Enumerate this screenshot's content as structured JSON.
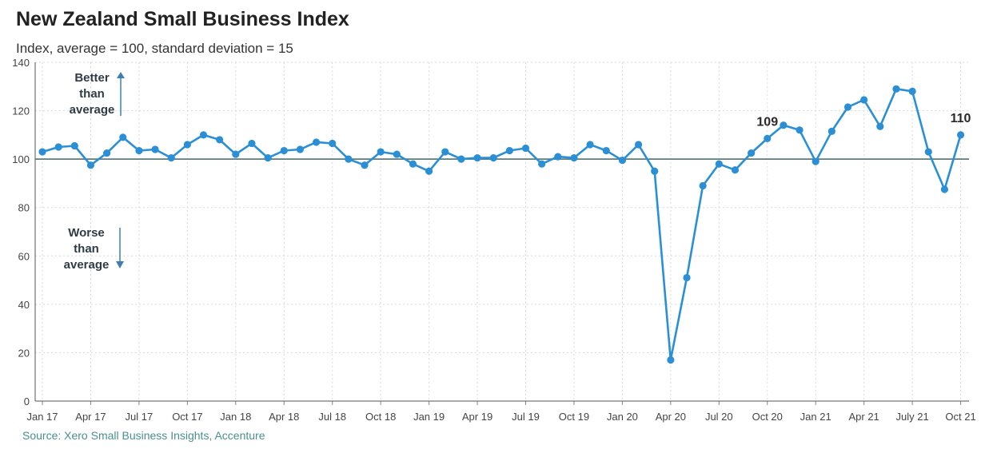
{
  "chart_data": {
    "type": "line",
    "title": "New Zealand Small Business Index",
    "subtitle": "Index, average = 100, standard deviation = 15",
    "source": "Source: Xero Small Business Insights, Accenture",
    "series_color": "#2b8fd6",
    "reference_line": {
      "y": 100,
      "color": "#5f7a7a"
    },
    "ylim": [
      0,
      140
    ],
    "yticks": [
      0,
      20,
      40,
      60,
      80,
      100,
      120,
      140
    ],
    "grid": true,
    "x_tick_labels": [
      {
        "index": 0,
        "label": "Jan 17"
      },
      {
        "index": 3,
        "label": "Apr 17"
      },
      {
        "index": 6,
        "label": "Jul 17"
      },
      {
        "index": 9,
        "label": "Oct 17"
      },
      {
        "index": 12,
        "label": "Jan 18"
      },
      {
        "index": 15,
        "label": "Apr 18"
      },
      {
        "index": 18,
        "label": "Jul 18"
      },
      {
        "index": 21,
        "label": "Oct 18"
      },
      {
        "index": 24,
        "label": "Jan 19"
      },
      {
        "index": 27,
        "label": "Apr 19"
      },
      {
        "index": 30,
        "label": "Jul 19"
      },
      {
        "index": 33,
        "label": "Oct 19"
      },
      {
        "index": 36,
        "label": "Jan 20"
      },
      {
        "index": 39,
        "label": "Apr 20"
      },
      {
        "index": 42,
        "label": "Jul 20"
      },
      {
        "index": 45,
        "label": "Oct 20"
      },
      {
        "index": 48,
        "label": "Jan 21"
      },
      {
        "index": 51,
        "label": "Apr 21"
      },
      {
        "index": 54,
        "label": "July 21"
      },
      {
        "index": 57,
        "label": "Oct 21"
      }
    ],
    "values": [
      103,
      105,
      105.5,
      97.5,
      102.5,
      109,
      103.5,
      104,
      100.5,
      106,
      110,
      108,
      102,
      106.5,
      100.5,
      103.5,
      104,
      107,
      106.5,
      100,
      97.5,
      103,
      102,
      98,
      95,
      103,
      100,
      100.5,
      100.5,
      103.5,
      104.5,
      98,
      101,
      100.5,
      106,
      103.5,
      99.5,
      106,
      95,
      17,
      51,
      89,
      98,
      95.5,
      102.5,
      108.5,
      114,
      112,
      99,
      111.5,
      121.5,
      124.5,
      113.5,
      129,
      128,
      103,
      87.5,
      110
    ],
    "data_labels": [
      {
        "index": 45,
        "text": "109"
      },
      {
        "index": 57,
        "text": "110"
      }
    ],
    "annotations": {
      "better": [
        "Better",
        "than",
        "average"
      ],
      "worse": [
        "Worse",
        "than",
        "average"
      ]
    }
  }
}
